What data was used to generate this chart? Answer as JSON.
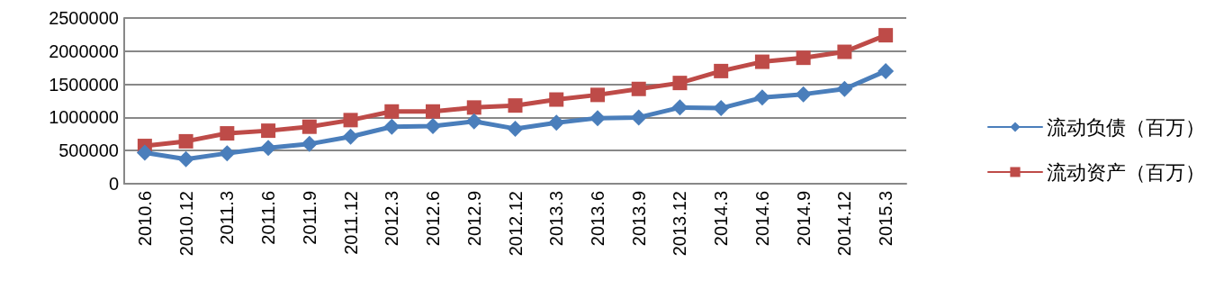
{
  "chart_data": {
    "type": "line",
    "categories": [
      "2010.6",
      "2010.12",
      "2011.3",
      "2011.6",
      "2011.9",
      "2011.12",
      "2012.3",
      "2012.6",
      "2012.9",
      "2012.12",
      "2013.3",
      "2013.6",
      "2013.9",
      "2013.12",
      "2014.3",
      "2014.6",
      "2014.9",
      "2014.12",
      "2015.3"
    ],
    "series": [
      {
        "name": "流动负债（百万）",
        "color": "#4a7ebb",
        "marker": "diamond",
        "values": [
          470000,
          370000,
          460000,
          540000,
          600000,
          710000,
          860000,
          870000,
          940000,
          830000,
          920000,
          990000,
          1000000,
          1150000,
          1140000,
          1300000,
          1350000,
          1430000,
          1700000
        ]
      },
      {
        "name": "流动资产（百万）",
        "color": "#be4b48",
        "marker": "square",
        "values": [
          570000,
          640000,
          760000,
          800000,
          860000,
          960000,
          1090000,
          1090000,
          1150000,
          1180000,
          1270000,
          1340000,
          1430000,
          1520000,
          1700000,
          1840000,
          1900000,
          1990000,
          2240000
        ]
      }
    ],
    "ylim": [
      0,
      2500000
    ],
    "yticks": [
      0,
      500000,
      1000000,
      1500000,
      2000000,
      2500000
    ],
    "grid": "y",
    "legend": "right"
  }
}
